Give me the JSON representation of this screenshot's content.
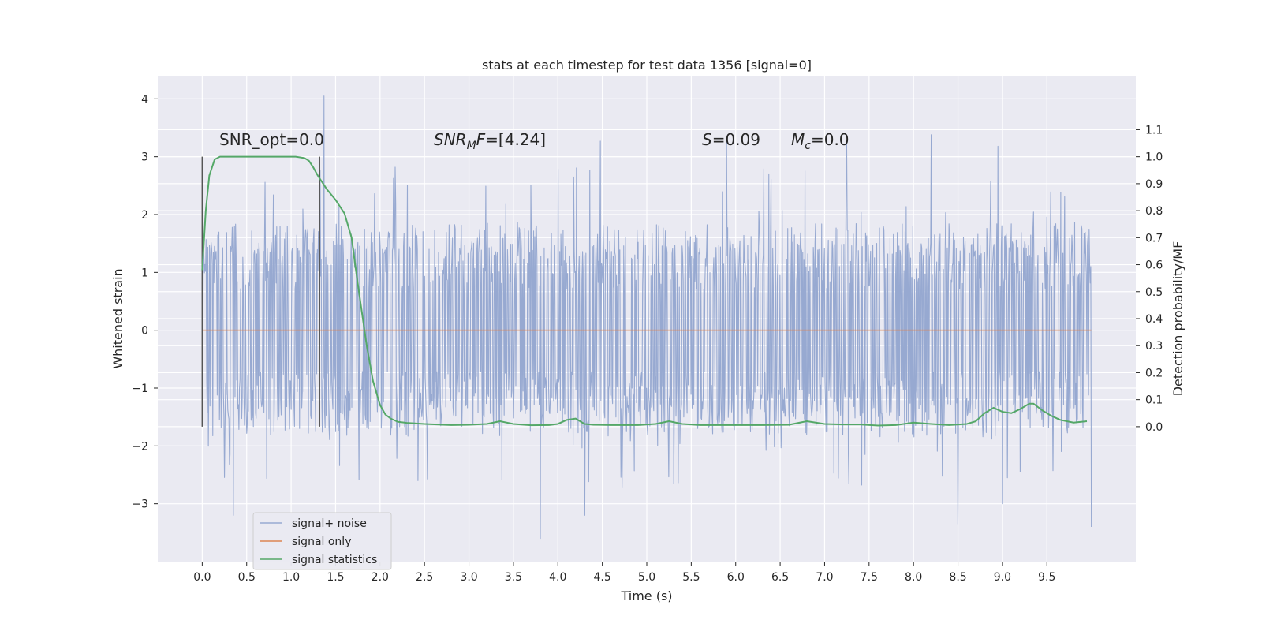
{
  "chart_data": {
    "type": "line",
    "title": "stats at each timestep for test data 1356 [signal=0]",
    "xlabel": "Time (s)",
    "ylabel_left": "Whitened strain",
    "ylabel_right": "Detection probability/MF",
    "xlim": [
      -0.5,
      10.5
    ],
    "ylim_left": [
      -4,
      4.4
    ],
    "ylim_right": [
      -0.5,
      1.3
    ],
    "x_ticks": [
      0.0,
      0.5,
      1.0,
      1.5,
      2.0,
      2.5,
      3.0,
      3.5,
      4.0,
      4.5,
      5.0,
      5.5,
      6.0,
      6.5,
      7.0,
      7.5,
      8.0,
      8.5,
      9.0,
      9.5
    ],
    "x_tick_labels": [
      "0.0",
      "0.5",
      "1.0",
      "1.5",
      "2.0",
      "2.5",
      "3.0",
      "3.5",
      "4.0",
      "4.5",
      "5.0",
      "5.5",
      "6.0",
      "6.5",
      "7.0",
      "7.5",
      "8.0",
      "8.5",
      "9.0",
      "9.5"
    ],
    "y_left_ticks": [
      4,
      3,
      2,
      1,
      0,
      -1,
      -2,
      -3
    ],
    "y_left_tick_labels": [
      "4",
      "3",
      "2",
      "1",
      "0",
      "−1",
      "−2",
      "−3"
    ],
    "y_right_ticks": [
      1.1,
      1.0,
      0.9,
      0.8,
      0.7,
      0.6,
      0.5,
      0.4,
      0.3,
      0.2,
      0.1,
      0.0
    ],
    "y_right_tick_labels": [
      "1.1",
      "1.0",
      "0.9",
      "0.8",
      "0.7",
      "0.6",
      "0.5",
      "0.4",
      "0.3",
      "0.2",
      "0.1",
      "0.0"
    ],
    "grid": true,
    "legend_position": "lower-left",
    "background_color": "#eaeaf2",
    "colors": {
      "noise": "#97a9d1",
      "signal_only": "#dd8452",
      "statistics": "#55a868",
      "markers": "#555555"
    },
    "annotations": {
      "snr_opt_label": "SNR_opt=0.0",
      "snr_mf_symbol": "SNR",
      "snr_mf_sub": "M",
      "snr_mf_f": "F",
      "snr_mf_value": "=[4.24]",
      "s_symbol": "S",
      "s_value": "=0.09",
      "mc_symbol": "M",
      "mc_sub": "c",
      "mc_value": "=0.0"
    },
    "vertical_markers": [
      0.0,
      1.32
    ],
    "series": [
      {
        "name": "signal+ noise",
        "axis": "left",
        "x_range": [
          0.0,
          10.0
        ],
        "envelope_abs": 1.42,
        "notable_peaks": [
          [
            1.37,
            4.05
          ],
          [
            4.48,
            3.27
          ],
          [
            5.9,
            3.25
          ],
          [
            7.25,
            3.22
          ],
          [
            8.2,
            3.38
          ],
          [
            8.95,
            3.18
          ],
          [
            9.0,
            -3.0
          ],
          [
            3.8,
            -3.6
          ],
          [
            8.5,
            -3.35
          ],
          [
            10.0,
            -3.4
          ],
          [
            0.35,
            -3.2
          ],
          [
            4.3,
            -3.2
          ]
        ]
      },
      {
        "name": "signal only",
        "axis": "left",
        "x": [
          0.0,
          10.0
        ],
        "y": [
          0.0,
          0.0
        ]
      },
      {
        "name": "signal statistics",
        "axis": "right",
        "x": [
          0.0,
          0.04,
          0.08,
          0.14,
          0.2,
          0.3,
          0.5,
          0.7,
          0.9,
          1.05,
          1.15,
          1.2,
          1.25,
          1.3,
          1.4,
          1.5,
          1.6,
          1.68,
          1.72,
          1.78,
          1.85,
          1.92,
          2.0,
          2.06,
          2.12,
          2.2,
          2.3,
          2.5,
          2.8,
          3.0,
          3.2,
          3.35,
          3.5,
          3.7,
          3.9,
          4.0,
          4.1,
          4.2,
          4.3,
          4.4,
          4.6,
          4.9,
          5.1,
          5.25,
          5.4,
          5.6,
          6.0,
          6.3,
          6.6,
          6.8,
          7.0,
          7.2,
          7.4,
          7.6,
          7.8,
          8.0,
          8.2,
          8.4,
          8.6,
          8.7,
          8.8,
          8.9,
          9.0,
          9.1,
          9.2,
          9.3,
          9.35,
          9.45,
          9.55,
          9.65,
          9.8,
          9.95
        ],
        "y": [
          0.58,
          0.8,
          0.93,
          0.99,
          1.0,
          1.0,
          1.0,
          1.0,
          1.0,
          1.0,
          0.995,
          0.985,
          0.96,
          0.93,
          0.88,
          0.84,
          0.79,
          0.7,
          0.6,
          0.46,
          0.3,
          0.17,
          0.08,
          0.045,
          0.03,
          0.018,
          0.014,
          0.01,
          0.006,
          0.007,
          0.01,
          0.02,
          0.01,
          0.005,
          0.006,
          0.01,
          0.025,
          0.03,
          0.01,
          0.007,
          0.006,
          0.006,
          0.01,
          0.02,
          0.01,
          0.006,
          0.006,
          0.006,
          0.007,
          0.02,
          0.01,
          0.008,
          0.008,
          0.004,
          0.006,
          0.015,
          0.01,
          0.006,
          0.01,
          0.02,
          0.05,
          0.07,
          0.055,
          0.05,
          0.065,
          0.085,
          0.085,
          0.06,
          0.04,
          0.025,
          0.015,
          0.02
        ]
      }
    ]
  }
}
